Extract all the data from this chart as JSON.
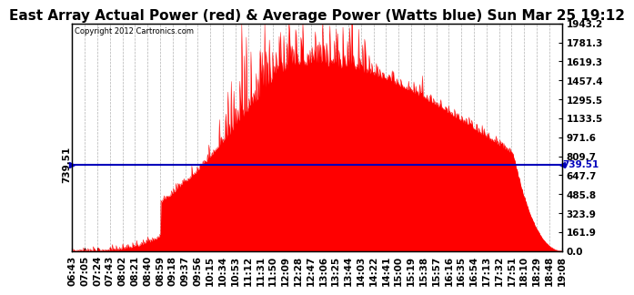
{
  "title": "East Array Actual Power (red) & Average Power (Watts blue) Sun Mar 25 19:12",
  "copyright": "Copyright 2012 Cartronics.com",
  "average_value": 739.51,
  "y_max": 1943.2,
  "y_min": 0.0,
  "y_ticks": [
    0.0,
    161.9,
    323.9,
    485.8,
    647.7,
    809.7,
    971.6,
    1133.5,
    1295.5,
    1457.4,
    1619.3,
    1781.3,
    1943.2
  ],
  "x_labels": [
    "06:43",
    "07:05",
    "07:24",
    "07:43",
    "08:02",
    "08:21",
    "08:40",
    "08:59",
    "09:18",
    "09:37",
    "09:56",
    "10:15",
    "10:34",
    "10:53",
    "11:12",
    "11:31",
    "11:50",
    "12:09",
    "12:28",
    "12:47",
    "13:06",
    "13:25",
    "13:44",
    "14:03",
    "14:22",
    "14:41",
    "15:00",
    "15:19",
    "15:38",
    "15:57",
    "16:16",
    "16:35",
    "16:54",
    "17:13",
    "17:32",
    "17:51",
    "18:10",
    "18:29",
    "18:48",
    "19:08"
  ],
  "background_color": "#ffffff",
  "fill_color": "#ff0000",
  "avg_line_color": "#0000bb",
  "grid_color": "#aaaaaa",
  "title_fontsize": 11,
  "tick_fontsize": 7.5,
  "avg_label_fontsize": 7.5
}
